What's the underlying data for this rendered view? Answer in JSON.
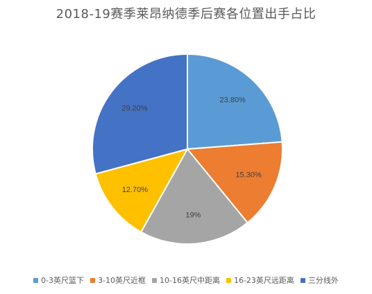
{
  "chart_data": {
    "type": "pie",
    "title": "2018-19赛季莱昂纳德季后赛各位置出手占比",
    "categories": [
      "0-3英尺篮下",
      "3-10英尺近框",
      "10-16英尺中距离",
      "16-23英尺远距离",
      "三分线外"
    ],
    "values": [
      23.8,
      15.3,
      19,
      12.7,
      29.2
    ],
    "value_labels": [
      "23.80%",
      "15.30%",
      "19%",
      "12.70%",
      "29.20%"
    ],
    "colors": [
      "#5B9BD5",
      "#ED7D31",
      "#A5A5A5",
      "#FFC000",
      "#4472C4"
    ],
    "start_angle": "12 o'clock",
    "direction": "clockwise",
    "legend_position": "bottom"
  }
}
